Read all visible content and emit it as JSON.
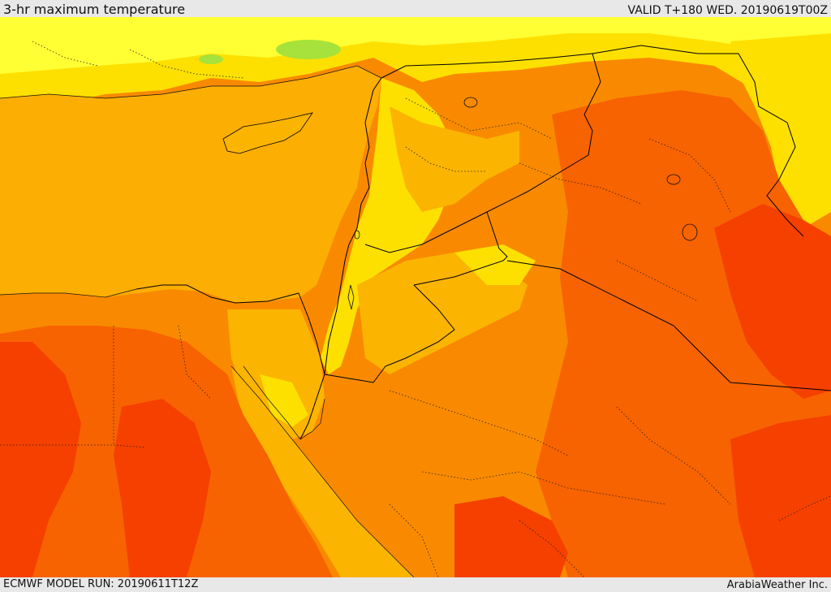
{
  "header": {
    "title": "3-hr maximum temperature",
    "valid": "VALID T+180 WED. 20190619T00Z"
  },
  "footer": {
    "model_run": "ECMWF MODEL RUN: 20190611T12Z",
    "credit": "ArabiaWeather Inc."
  },
  "palette": {
    "sea": "#fdae03",
    "light_yellow": "#ffff33",
    "yellow": "#fde000",
    "light_orange": "#fbb400",
    "orange": "#f98a00",
    "dark_orange": "#f76300",
    "red_orange": "#f54000",
    "green_patch": "#a6e23b",
    "border": "#000000"
  }
}
